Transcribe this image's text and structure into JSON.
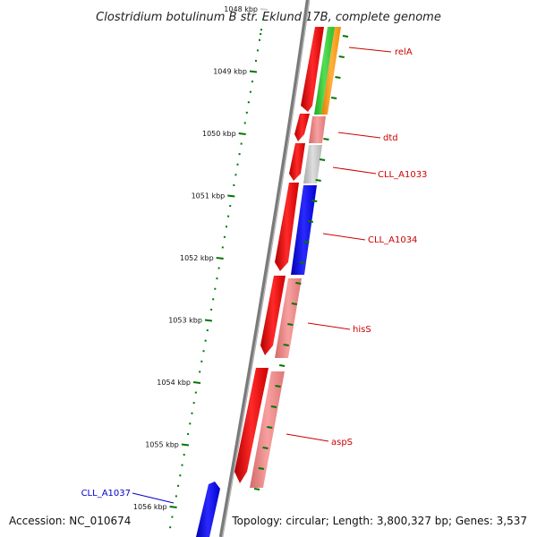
{
  "title": "Clostridium botulinum B str. Eklund 17B, complete genome",
  "footer": {
    "accession": "Accession: NC_010674",
    "summary": "Topology: circular; Length: 3,800,327 bp; Genes: 3,537"
  },
  "scale": {
    "ticks": [
      "1048 kbp",
      "1049 kbp",
      "1050 kbp",
      "1051 kbp",
      "1052 kbp",
      "1053 kbp",
      "1054 kbp",
      "1055 kbp",
      "1056 kbp"
    ]
  },
  "genes": [
    {
      "name": "relA",
      "color": "#cc0000"
    },
    {
      "name": "dtd",
      "color": "#cc0000"
    },
    {
      "name": "CLL_A1033",
      "color": "#cc0000"
    },
    {
      "name": "CLL_A1034",
      "color": "#cc0000"
    },
    {
      "name": "hisS",
      "color": "#cc0000"
    },
    {
      "name": "aspS",
      "color": "#cc0000"
    },
    {
      "name": "CLL_A1037",
      "color": "#0000cc"
    }
  ],
  "colors": {
    "backbone": "#808080",
    "cds_forward": "#ff0000",
    "cds_reverse": "#0000ff",
    "gene_pink": "#f08080",
    "gene_gray": "#c0c0c0",
    "gene_blue": "#0000ff",
    "rna_green": "#33cc33",
    "rna_orange": "#ff9900",
    "tick_green": "#007700"
  }
}
